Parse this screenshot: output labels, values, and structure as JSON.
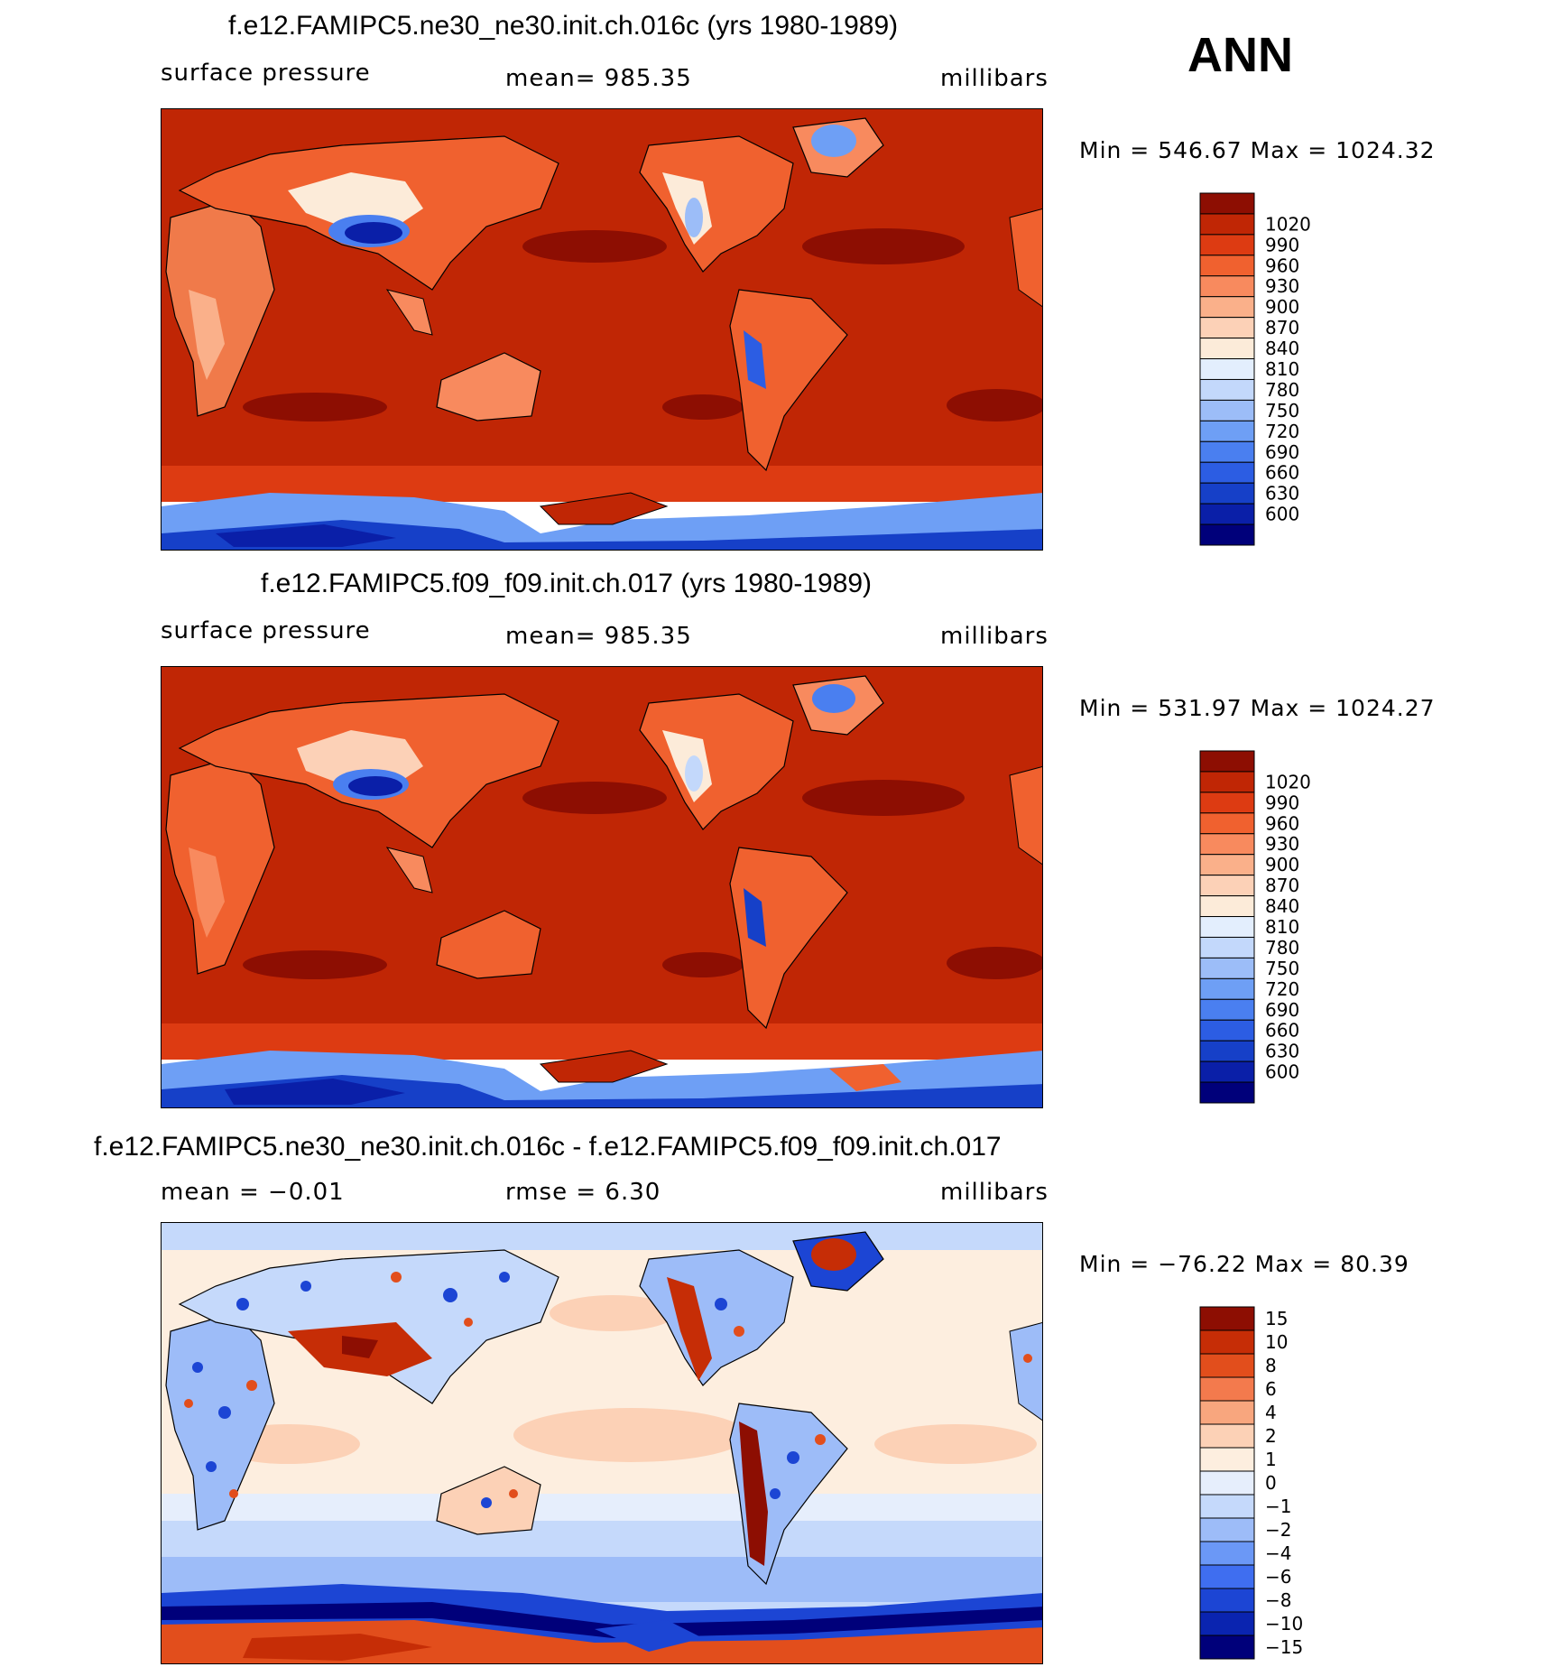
{
  "season": "ANN",
  "colors": {
    "abs_palette": [
      "#00007a",
      "#0a1fa8",
      "#1640c8",
      "#2c5de3",
      "#4a7ff0",
      "#6e9ff5",
      "#9cbdf8",
      "#c3d8fb",
      "#e3eefd",
      "#fcebd9",
      "#fcd1b7",
      "#fab08a",
      "#f88a5e",
      "#f0612f",
      "#dd3b12",
      "#c02605",
      "#8d0e02"
    ],
    "diff_palette": [
      "#00007a",
      "#0a24b0",
      "#1c45d4",
      "#3f6ef0",
      "#6b98f6",
      "#9dbcf8",
      "#c5d9fb",
      "#e6eefc",
      "#fdeedf",
      "#fcd1b6",
      "#f8a67e",
      "#f37a4d",
      "#e24e1c",
      "#c62d06",
      "#8d0e02"
    ],
    "coastline": "#000000"
  },
  "panels": [
    {
      "title": "f.e12.FAMIPC5.ne30_ne30.init.ch.016c (yrs 1980-1989)",
      "left_label": "surface pressure",
      "center_label": "mean=  985.35",
      "right_label": "millibars",
      "minmax": "Min  =  546.67  Max  =  1024.32",
      "colorbar_labels": [
        "1020",
        "990",
        "960",
        "930",
        "900",
        "870",
        "840",
        "810",
        "780",
        "750",
        "720",
        "690",
        "660",
        "630",
        "600"
      ]
    },
    {
      "title": "f.e12.FAMIPC5.f09_f09.init.ch.017 (yrs 1980-1989)",
      "left_label": "surface pressure",
      "center_label": "mean=  985.35",
      "right_label": "millibars",
      "minmax": "Min  =  531.97  Max  =  1024.27",
      "colorbar_labels": [
        "1020",
        "990",
        "960",
        "930",
        "900",
        "870",
        "840",
        "810",
        "780",
        "750",
        "720",
        "690",
        "660",
        "630",
        "600"
      ]
    },
    {
      "title": "f.e12.FAMIPC5.ne30_ne30.init.ch.016c - f.e12.FAMIPC5.f09_f09.init.ch.017",
      "left_label": "mean  =    −0.01",
      "center_label": "rmse  =      6.30",
      "right_label": "millibars",
      "minmax": "Min  =  −76.22  Max  =    80.39",
      "colorbar_labels": [
        "15",
        "10",
        "8",
        "6",
        "4",
        "2",
        "1",
        "0",
        "−1",
        "−2",
        "−4",
        "−6",
        "−8",
        "−10",
        "−15"
      ]
    }
  ]
}
